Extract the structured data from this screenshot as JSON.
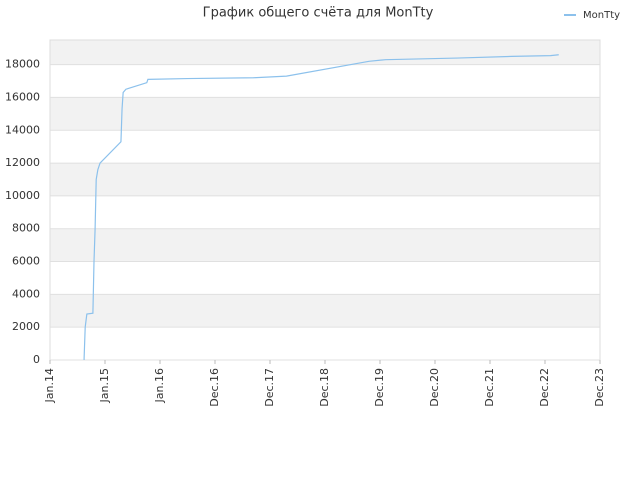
{
  "chart_data": {
    "type": "line",
    "title": "График общего счёта для MonTty",
    "x": [
      0.62,
      0.62,
      0.64,
      0.67,
      0.78,
      0.8,
      0.82,
      0.84,
      0.87,
      0.91,
      1.29,
      1.31,
      1.33,
      1.38,
      1.76,
      1.78,
      2.5,
      3.7,
      4.3,
      5.8,
      6.1,
      7.4,
      8.4,
      9.1,
      9.25
    ],
    "series": [
      {
        "name": "MonTty",
        "color": "#8cc1ec",
        "values": [
          0,
          100,
          2000,
          2800,
          2850,
          6000,
          8000,
          11000,
          11600,
          12000,
          13300,
          15300,
          16300,
          16500,
          16900,
          17100,
          17150,
          17200,
          17300,
          18200,
          18300,
          18400,
          18500,
          18550,
          18600
        ]
      }
    ],
    "xlim": [
      0,
      10
    ],
    "xticks": [
      {
        "value": 0,
        "label": "Jan.14"
      },
      {
        "value": 1,
        "label": "Jan.15"
      },
      {
        "value": 2,
        "label": "Jan.16"
      },
      {
        "value": 3,
        "label": "Dec.16"
      },
      {
        "value": 4,
        "label": "Dec.17"
      },
      {
        "value": 5,
        "label": "Dec.18"
      },
      {
        "value": 6,
        "label": "Dec.19"
      },
      {
        "value": 7,
        "label": "Dec.20"
      },
      {
        "value": 8,
        "label": "Dec.21"
      },
      {
        "value": 9,
        "label": "Dec.22"
      },
      {
        "value": 10,
        "label": "Dec.23"
      }
    ],
    "ylim": [
      0,
      19500
    ],
    "yticks": [
      0,
      2000,
      4000,
      6000,
      8000,
      10000,
      12000,
      14000,
      16000,
      18000
    ],
    "grid": true,
    "legend": "top-right"
  }
}
